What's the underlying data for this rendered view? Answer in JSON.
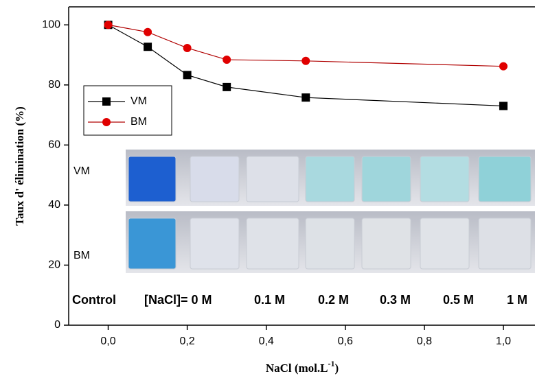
{
  "chart_data": {
    "type": "line",
    "x_label": [
      "NaCl (mol.L",
      "-1",
      ")"
    ],
    "y_label": "Taux d' élimination (%)",
    "x": [
      0,
      0.1,
      0.2,
      0.3,
      0.5,
      1.0
    ],
    "series": [
      {
        "name": "VM",
        "color": "#000000",
        "marker": "square",
        "values": [
          100,
          92.7,
          83.3,
          79.3,
          75.8,
          73
        ]
      },
      {
        "name": "BM",
        "color": "#e00000",
        "marker": "circle",
        "values": [
          100,
          97.6,
          92.3,
          88.4,
          88,
          86.2
        ]
      }
    ],
    "xlim": [
      -0.1,
      1.08
    ],
    "ylim": [
      0,
      106
    ],
    "xticks": [
      {
        "value": 0,
        "label": "0,0"
      },
      {
        "value": 0.2,
        "label": "0,2"
      },
      {
        "value": 0.4,
        "label": "0,4"
      },
      {
        "value": 0.6,
        "label": "0,6"
      },
      {
        "value": 0.8,
        "label": "0,8"
      },
      {
        "value": 1.0,
        "label": "1,0"
      }
    ],
    "yticks": [
      0,
      20,
      40,
      60,
      80,
      100
    ],
    "legend": "upper left",
    "inset": {
      "row_labels": [
        "VM",
        "BM"
      ],
      "column_labels": [
        "Control",
        "[NaCl]= 0 M",
        "0.1 M",
        "0.2 M",
        "0.3 M",
        "0.5 M",
        "1 M"
      ]
    }
  }
}
